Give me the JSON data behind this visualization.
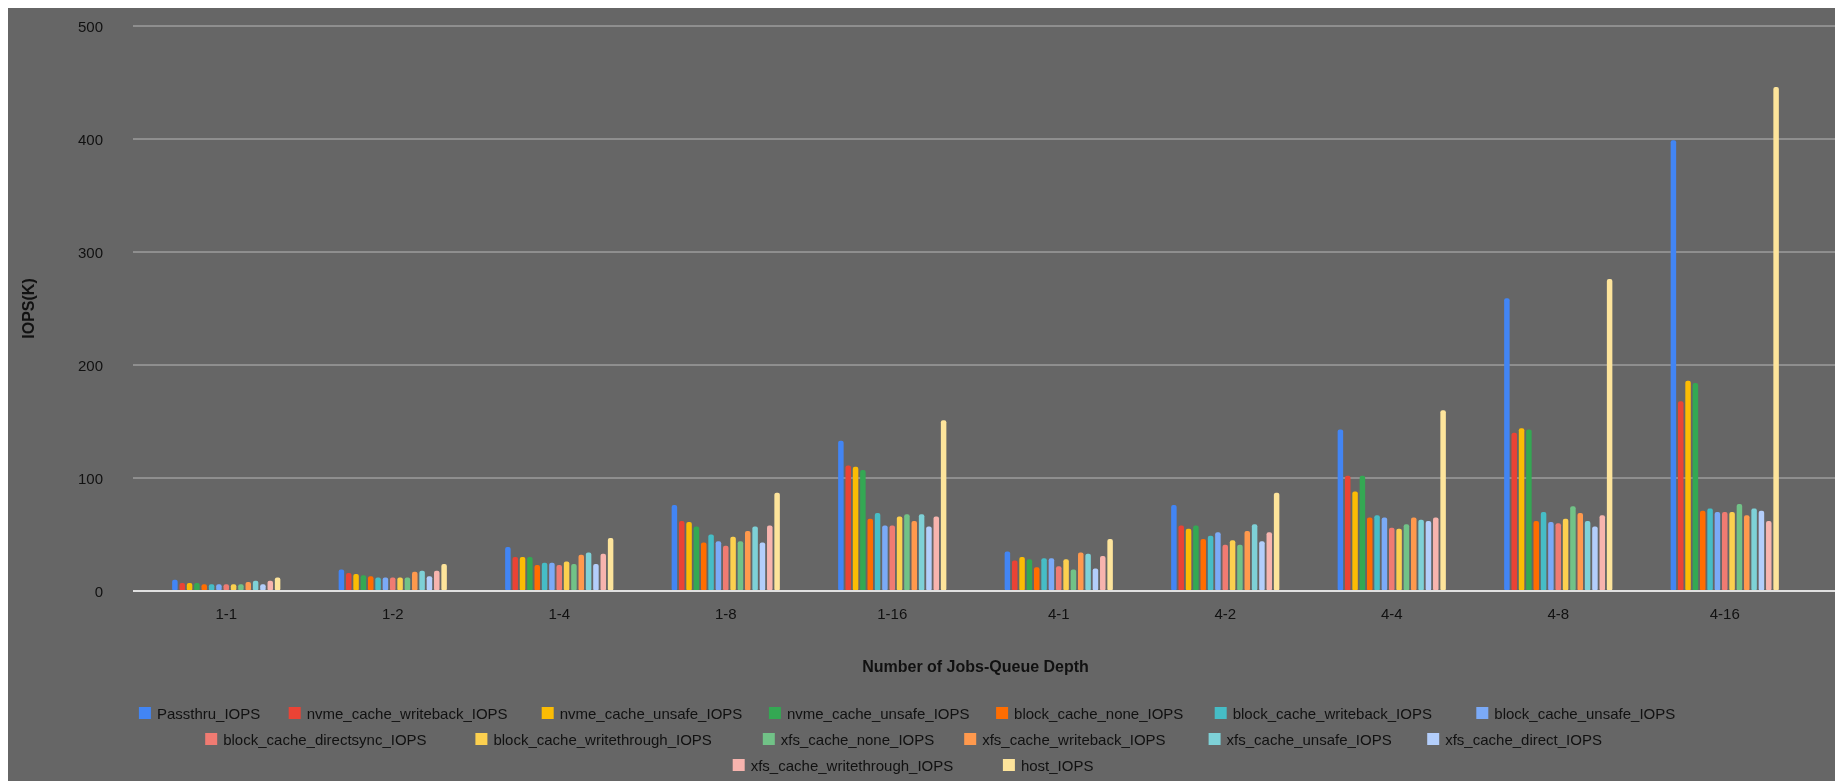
{
  "chart_data": {
    "type": "bar",
    "xlabel": "Number of Jobs-Queue Depth",
    "ylabel": "IOPS(K)",
    "categories": [
      "1-1",
      "1-2",
      "1-4",
      "1-8",
      "1-16",
      "4-1",
      "4-2",
      "4-4",
      "4-8",
      "4-16"
    ],
    "ylim": [
      0,
      500
    ],
    "yticks": [
      0,
      100,
      200,
      300,
      400,
      500
    ],
    "grid": "y",
    "legend": "bottom",
    "series": [
      {
        "name": "Passthru_IOPS",
        "color": "#4285f4",
        "values": [
          10,
          19,
          39,
          76,
          133,
          35,
          76,
          143,
          259,
          399
        ]
      },
      {
        "name": "nvme_cache_writeback_IOPS",
        "color": "#ea4335",
        "values": [
          7,
          16,
          30,
          62,
          111,
          27,
          58,
          102,
          140,
          168
        ]
      },
      {
        "name": "nvme_cache_unsafe_IOPS",
        "color": "#fbbc04",
        "values": [
          7,
          15,
          30,
          61,
          110,
          30,
          55,
          88,
          144,
          186
        ]
      },
      {
        "name": "nvme_cache_unsafe_IOPS",
        "color": "#34a853",
        "values": [
          7,
          14,
          30,
          57,
          107,
          28,
          58,
          102,
          143,
          184
        ]
      },
      {
        "name": "block_cache_none_IOPS",
        "color": "#ff6d01",
        "values": [
          6,
          13,
          23,
          43,
          64,
          21,
          46,
          65,
          62,
          71
        ]
      },
      {
        "name": "block_cache_writeback_IOPS",
        "color": "#46bdc6",
        "values": [
          6,
          12,
          25,
          50,
          69,
          29,
          49,
          67,
          70,
          73
        ]
      },
      {
        "name": "block_cache_unsafe_IOPS",
        "color": "#7baaf7",
        "values": [
          6,
          12,
          25,
          44,
          58,
          29,
          52,
          65,
          61,
          70
        ]
      },
      {
        "name": "block_cache_directsync_IOPS",
        "color": "#f07b72",
        "values": [
          6,
          12,
          23,
          40,
          58,
          22,
          41,
          56,
          60,
          70
        ]
      },
      {
        "name": "block_cache_writethrough_IOPS",
        "color": "#fcd04f",
        "values": [
          6,
          12,
          26,
          48,
          66,
          28,
          45,
          55,
          64,
          70
        ]
      },
      {
        "name": "xfs_cache_none_IOPS",
        "color": "#71c287",
        "values": [
          6,
          12,
          24,
          44,
          68,
          19,
          41,
          59,
          75,
          77
        ]
      },
      {
        "name": "xfs_cache_writeback_IOPS",
        "color": "#ff994d",
        "values": [
          8,
          17,
          32,
          53,
          62,
          34,
          53,
          65,
          69,
          67
        ]
      },
      {
        "name": "xfs_cache_unsafe_IOPS",
        "color": "#7ed1d7",
        "values": [
          9,
          18,
          34,
          57,
          68,
          33,
          59,
          63,
          62,
          73
        ]
      },
      {
        "name": "xfs_cache_direct_IOPS",
        "color": "#b3cefb",
        "values": [
          6,
          13,
          24,
          43,
          57,
          20,
          44,
          62,
          57,
          71
        ]
      },
      {
        "name": "xfs_cache_writethrough_IOPS",
        "color": "#f7b4ae",
        "values": [
          9,
          18,
          33,
          58,
          66,
          31,
          52,
          65,
          67,
          62
        ]
      },
      {
        "name": "host_IOPS",
        "color": "#fde49b",
        "values": [
          12,
          24,
          47,
          87,
          151,
          46,
          87,
          160,
          276,
          446
        ]
      }
    ]
  }
}
